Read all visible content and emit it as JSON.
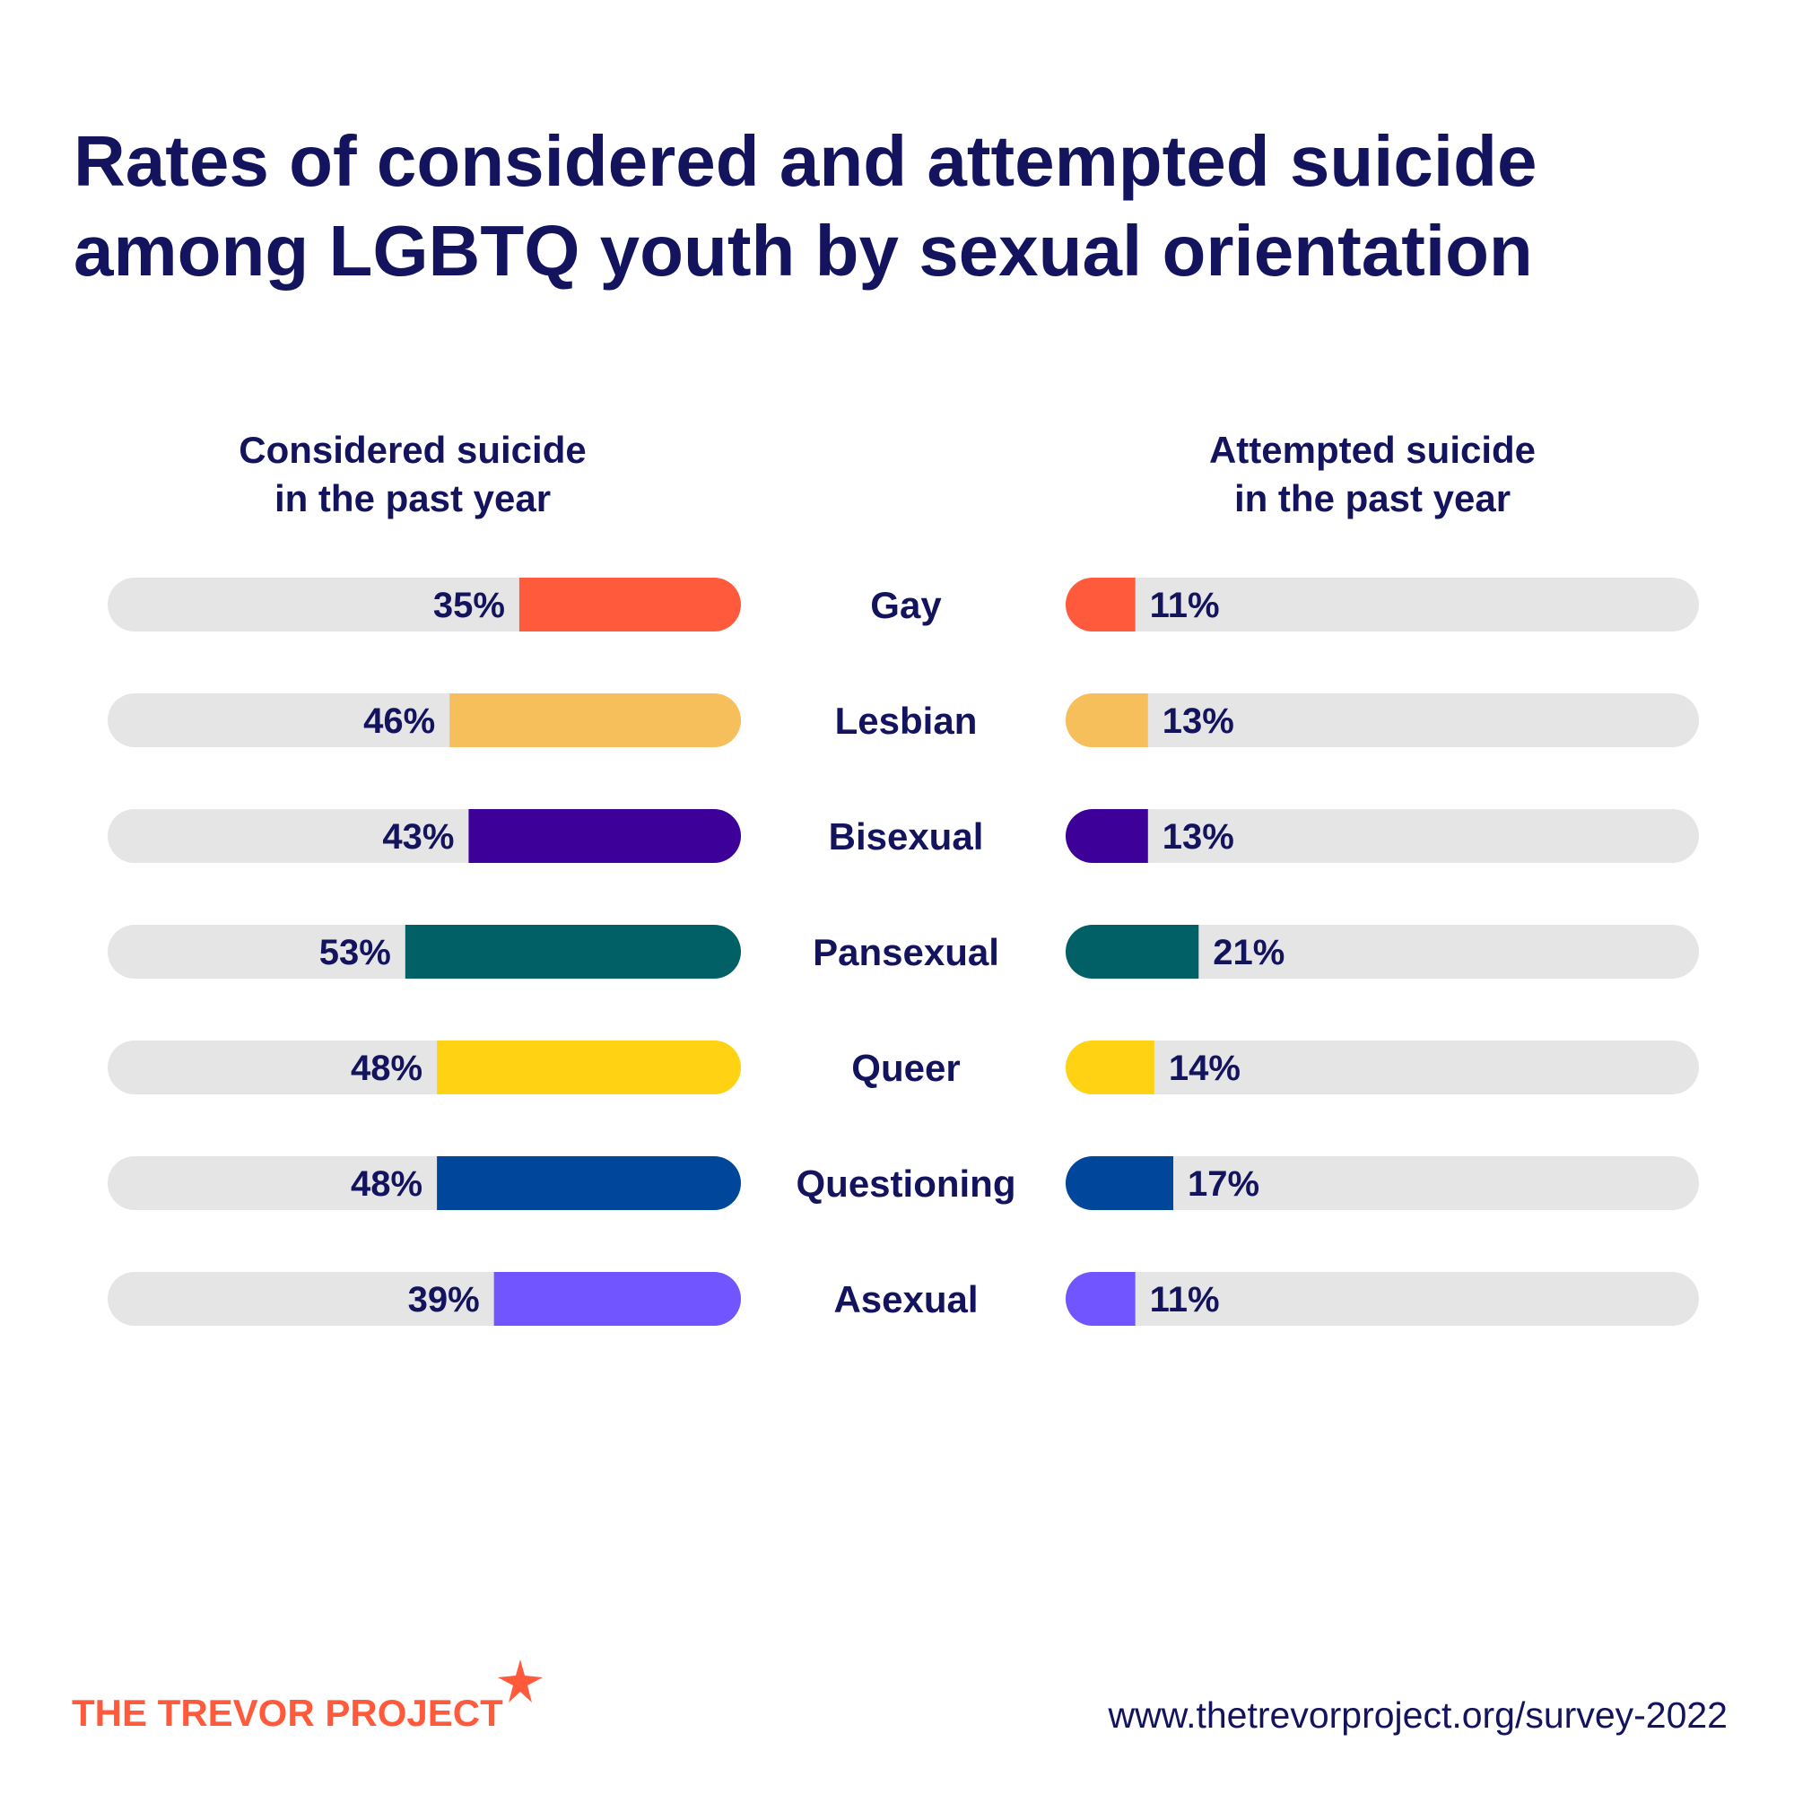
{
  "title_line1": "Rates of considered and attempted suicide",
  "title_line2": "among LGBTQ youth by sexual orientation",
  "left_header_line1": "Considered suicide",
  "left_header_line2": "in the past year",
  "right_header_line1": "Attempted suicide",
  "right_header_line2": "in the past year",
  "footer": {
    "logo_text": "THE TREVOR PROJECT",
    "url": "www.thetrevorproject.org/survey-2022"
  },
  "colors": {
    "title": "#13135e",
    "track": "#e5e5e5",
    "logo": "#ff5a3c"
  },
  "chart_data": {
    "type": "bar",
    "categories": [
      "Gay",
      "Lesbian",
      "Bisexual",
      "Pansexual",
      "Queer",
      "Questioning",
      "Asexual"
    ],
    "series": [
      {
        "name": "Considered suicide in the past year",
        "values": [
          35,
          46,
          43,
          53,
          48,
          48,
          39
        ],
        "labels": [
          "35%",
          "46%",
          "43%",
          "53%",
          "48%",
          "48%",
          "39%"
        ]
      },
      {
        "name": "Attempted suicide in the past year",
        "values": [
          11,
          13,
          13,
          21,
          14,
          17,
          11
        ],
        "labels": [
          "11%",
          "13%",
          "13%",
          "21%",
          "14%",
          "17%",
          "11%"
        ]
      }
    ],
    "bar_colors": [
      "#ff5a3c",
      "#f7bf5b",
      "#3d0099",
      "#006066",
      "#ffd313",
      "#00469a",
      "#7155ff"
    ],
    "ylim": [
      0,
      100
    ],
    "unit": "%",
    "legend": "none"
  }
}
